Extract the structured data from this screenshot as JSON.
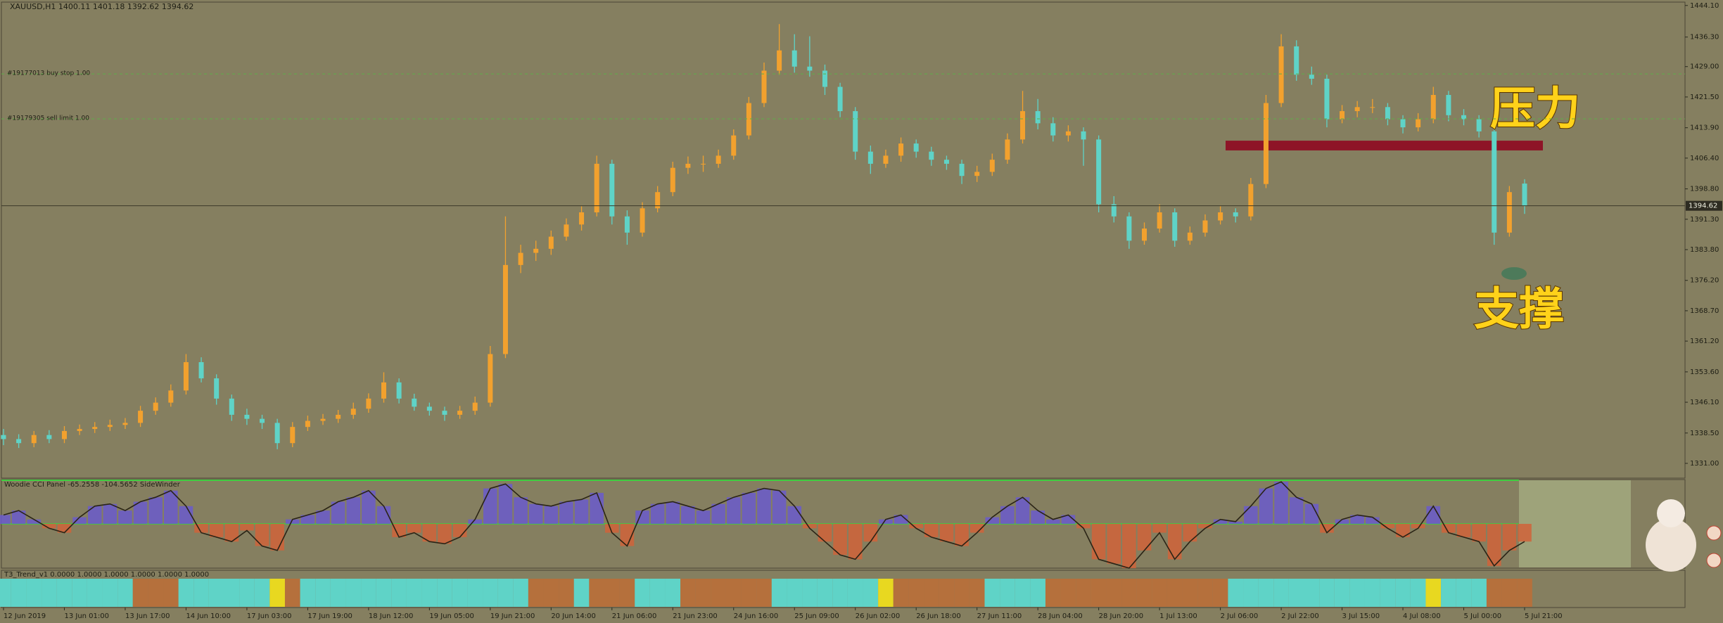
{
  "chart_data": [
    {
      "type": "candlestick",
      "title": "XAUUSD,H1  1400.11 1401.18 1392.62 1394.62",
      "categories": [
        "12 Jun 2019",
        null,
        null,
        null,
        "13 Jun 01:00",
        null,
        null,
        null,
        "13 Jun 17:00",
        null,
        null,
        null,
        "14 Jun 10:00",
        null,
        null,
        null,
        "17 Jun 03:00",
        null,
        null,
        null,
        "17 Jun 19:00",
        null,
        null,
        null,
        "18 Jun 12:00",
        null,
        null,
        null,
        "19 Jun 05:00",
        null,
        null,
        null,
        "19 Jun 21:00",
        null,
        null,
        null,
        "20 Jun 14:00",
        null,
        null,
        null,
        "21 Jun 06:00",
        null,
        null,
        null,
        "21 Jun 23:00",
        null,
        null,
        null,
        "24 Jun 16:00",
        null,
        null,
        null,
        "25 Jun 09:00",
        null,
        null,
        null,
        "26 Jun 02:00",
        null,
        null,
        null,
        "26 Jun 18:00",
        null,
        null,
        null,
        "27 Jun 11:00",
        null,
        null,
        null,
        "28 Jun 04:00",
        null,
        null,
        null,
        "28 Jun 20:00",
        null,
        null,
        null,
        "1 Jul 13:00",
        null,
        null,
        null,
        "2 Jul 06:00",
        null,
        null,
        null,
        "2 Jul 22:00",
        null,
        null,
        null,
        "3 Jul 15:00",
        null,
        null,
        null,
        "4 Jul 08:00",
        null,
        null,
        null,
        "5 Jul 00:00",
        null,
        null,
        null,
        "5 Jul 21:00"
      ],
      "candles": [
        [
          1338,
          1339.5,
          1335.5,
          1337
        ],
        [
          1337,
          1338.2,
          1334.8,
          1336
        ],
        [
          1336,
          1339,
          1335,
          1338
        ],
        [
          1338,
          1339.2,
          1336,
          1337
        ],
        [
          1337,
          1340.2,
          1336,
          1339
        ],
        [
          1339,
          1340.6,
          1338,
          1339.5
        ],
        [
          1339.5,
          1341.2,
          1338.5,
          1340
        ],
        [
          1340,
          1341.8,
          1339,
          1340.5
        ],
        [
          1340.5,
          1342.2,
          1339.5,
          1341
        ],
        [
          1341,
          1345.2,
          1340,
          1344
        ],
        [
          1344,
          1347.3,
          1343,
          1346
        ],
        [
          1346,
          1350.5,
          1345,
          1349
        ],
        [
          1349,
          1358,
          1348,
          1356
        ],
        [
          1356,
          1357.2,
          1351,
          1352
        ],
        [
          1352,
          1353,
          1345.5,
          1347
        ],
        [
          1347,
          1348,
          1341.5,
          1343
        ],
        [
          1343,
          1344.5,
          1340.5,
          1342
        ],
        [
          1342,
          1343,
          1339.5,
          1341
        ],
        [
          1341,
          1342,
          1334.5,
          1336
        ],
        [
          1336,
          1341.2,
          1335,
          1340
        ],
        [
          1340,
          1342.8,
          1339,
          1341.5
        ],
        [
          1341.5,
          1343.2,
          1340.5,
          1342
        ],
        [
          1342,
          1344.2,
          1341,
          1343
        ],
        [
          1343,
          1346,
          1342,
          1344.5
        ],
        [
          1344.5,
          1348.3,
          1343.5,
          1347
        ],
        [
          1347,
          1353.5,
          1346,
          1351
        ],
        [
          1351,
          1352,
          1345.8,
          1347
        ],
        [
          1347,
          1348.2,
          1344,
          1345
        ],
        [
          1345,
          1346,
          1342.8,
          1344
        ],
        [
          1344,
          1345,
          1341.5,
          1343
        ],
        [
          1343,
          1345.2,
          1342,
          1344
        ],
        [
          1344,
          1347.5,
          1343,
          1346
        ],
        [
          1346,
          1360,
          1345,
          1358
        ],
        [
          1358,
          1392,
          1357,
          1380
        ],
        [
          1380,
          1385,
          1378,
          1383
        ],
        [
          1383,
          1386,
          1381,
          1384
        ],
        [
          1384,
          1388.5,
          1382.5,
          1387
        ],
        [
          1387,
          1391.5,
          1386,
          1390
        ],
        [
          1390,
          1394.5,
          1388.5,
          1393
        ],
        [
          1393,
          1407,
          1392,
          1405
        ],
        [
          1405,
          1406,
          1390,
          1392
        ],
        [
          1392,
          1393.5,
          1385,
          1388
        ],
        [
          1388,
          1395.5,
          1387,
          1394
        ],
        [
          1394,
          1399.5,
          1393,
          1398
        ],
        [
          1398,
          1405.5,
          1397,
          1404
        ],
        [
          1404,
          1406.8,
          1402.5,
          1405
        ],
        [
          1405,
          1407,
          1403,
          1405
        ],
        [
          1405,
          1408.5,
          1404,
          1407
        ],
        [
          1407,
          1413.5,
          1406,
          1412
        ],
        [
          1412,
          1421.5,
          1411,
          1420
        ],
        [
          1420,
          1430,
          1419,
          1428
        ],
        [
          1428,
          1439.5,
          1427,
          1433
        ],
        [
          1433,
          1437,
          1427.5,
          1429
        ],
        [
          1429,
          1436.5,
          1426.5,
          1428
        ],
        [
          1428,
          1429.5,
          1422,
          1424
        ],
        [
          1424,
          1425,
          1416.5,
          1418
        ],
        [
          1418,
          1419,
          1406,
          1408
        ],
        [
          1408,
          1409.5,
          1402.5,
          1405
        ],
        [
          1405,
          1408.5,
          1404,
          1407
        ],
        [
          1407,
          1411.5,
          1405.5,
          1410
        ],
        [
          1410,
          1411,
          1406.5,
          1408
        ],
        [
          1408,
          1409.2,
          1404.5,
          1406
        ],
        [
          1406,
          1407,
          1403.5,
          1405
        ],
        [
          1405,
          1406,
          1400,
          1402
        ],
        [
          1402,
          1404.5,
          1400.5,
          1403
        ],
        [
          1403,
          1407.5,
          1402,
          1406
        ],
        [
          1406,
          1412.5,
          1405,
          1411
        ],
        [
          1411,
          1423,
          1410,
          1418
        ],
        [
          1418,
          1421,
          1413.5,
          1415
        ],
        [
          1415,
          1416.5,
          1410.5,
          1412
        ],
        [
          1412,
          1414.5,
          1410.5,
          1413
        ],
        [
          1413,
          1414,
          1404.5,
          1411
        ],
        [
          1411,
          1412,
          1393,
          1395
        ],
        [
          1395,
          1397,
          1390.5,
          1392
        ],
        [
          1392,
          1393,
          1384,
          1386
        ],
        [
          1386,
          1390.5,
          1385,
          1389
        ],
        [
          1389,
          1395,
          1388,
          1393
        ],
        [
          1393,
          1394,
          1384.5,
          1386
        ],
        [
          1386,
          1389.5,
          1385,
          1388
        ],
        [
          1388,
          1392.5,
          1387,
          1391
        ],
        [
          1391,
          1394.5,
          1390,
          1393
        ],
        [
          1393,
          1394,
          1390.5,
          1392
        ],
        [
          1392,
          1401.5,
          1391,
          1400
        ],
        [
          1400,
          1422,
          1399,
          1420
        ],
        [
          1420,
          1437,
          1419,
          1434
        ],
        [
          1434,
          1435.5,
          1425.5,
          1427
        ],
        [
          1427,
          1429,
          1424.5,
          1426
        ],
        [
          1426,
          1427,
          1414,
          1416
        ],
        [
          1416,
          1419.5,
          1415,
          1418
        ],
        [
          1418,
          1420.5,
          1416.5,
          1419
        ],
        [
          1419,
          1421,
          1417.5,
          1419
        ],
        [
          1419,
          1420,
          1414.5,
          1416
        ],
        [
          1416,
          1417,
          1412.5,
          1414
        ],
        [
          1414,
          1417.5,
          1413,
          1416
        ],
        [
          1416,
          1424,
          1415,
          1422
        ],
        [
          1422,
          1423,
          1415.5,
          1417
        ],
        [
          1417,
          1418.5,
          1414.5,
          1416
        ],
        [
          1416,
          1417,
          1411.5,
          1413
        ],
        [
          1413,
          1414,
          1385,
          1388
        ],
        [
          1388,
          1399.5,
          1387,
          1398
        ],
        [
          1400.11,
          1401.18,
          1392.62,
          1394.62
        ]
      ],
      "up_color": "#f2a12e",
      "down_color": "#5fd3c7",
      "ylim": [
        1327.35,
        1444.93
      ],
      "yticks": [
        {
          "value": 1331,
          "label": "1331.00"
        },
        {
          "value": 1338.5,
          "label": "1338.50"
        },
        {
          "value": 1346.1,
          "label": "1346.10"
        },
        {
          "value": 1353.6,
          "label": "1353.60"
        },
        {
          "value": 1361.2,
          "label": "1361.20"
        },
        {
          "value": 1368.7,
          "label": "1368.70"
        },
        {
          "value": 1376.2,
          "label": "1376.20"
        },
        {
          "value": 1383.8,
          "label": "1383.80"
        },
        {
          "value": 1391.3,
          "label": "1391.30"
        },
        {
          "value": 1398.8,
          "label": "1398.80"
        },
        {
          "value": 1406.4,
          "label": "1406.40"
        },
        {
          "value": 1413.9,
          "label": "1413.90"
        },
        {
          "value": 1421.5,
          "label": "1421.50"
        },
        {
          "value": 1429,
          "label": "1429.00"
        },
        {
          "value": 1436.3,
          "label": "1436.30"
        },
        {
          "value": 1444.1,
          "label": "1444.10"
        }
      ],
      "grid": false,
      "last_price": 1394.62,
      "orders": [
        {
          "label": "#19177013 buy stop 1.00",
          "price": 1427.2
        },
        {
          "label": "#19179305 sell limit 1.00",
          "price": 1416.1
        }
      ],
      "zone": {
        "ymin": 1408.3,
        "ymax": 1410.7,
        "color": "#8e1427"
      },
      "annotations": [
        "压力",
        "支撑"
      ]
    },
    {
      "type": "oscillator",
      "title": "Woodie CCI Panel -65.2558 -104.5652 SideWinder",
      "values": [
        40,
        60,
        20,
        -20,
        -40,
        30,
        80,
        90,
        60,
        100,
        120,
        150,
        80,
        -40,
        -60,
        -80,
        -30,
        -100,
        -120,
        20,
        40,
        60,
        100,
        120,
        150,
        80,
        -60,
        -40,
        -80,
        -90,
        -60,
        20,
        160,
        180,
        120,
        90,
        80,
        100,
        110,
        140,
        -40,
        -100,
        60,
        90,
        100,
        80,
        60,
        90,
        120,
        140,
        160,
        150,
        80,
        -20,
        -80,
        -140,
        -160,
        -80,
        20,
        40,
        -20,
        -60,
        -80,
        -100,
        -40,
        30,
        80,
        120,
        60,
        20,
        40,
        -20,
        -160,
        -180,
        -200,
        -120,
        -40,
        -160,
        -80,
        -20,
        20,
        10,
        80,
        160,
        190,
        120,
        90,
        -40,
        20,
        40,
        30,
        -20,
        -60,
        -20,
        80,
        -40,
        -60,
        -80,
        -190,
        -120,
        -80
      ],
      "ylim": [
        -200,
        200
      ],
      "up_color": "#6a5acd",
      "down_color": "#d0633a"
    },
    {
      "type": "band",
      "title": "T3_Trend_v1 0.0000 1.0000 1.0000 1.0000 1.0000 1.0000",
      "values": [
        1,
        1,
        1,
        1,
        1,
        1,
        1,
        1,
        1,
        -1,
        -1,
        -1,
        1,
        1,
        1,
        1,
        1,
        1,
        0,
        -1,
        1,
        1,
        1,
        1,
        1,
        1,
        1,
        1,
        1,
        1,
        1,
        1,
        1,
        1,
        1,
        -1,
        -1,
        -1,
        1,
        -1,
        -1,
        -1,
        1,
        1,
        1,
        -1,
        -1,
        -1,
        -1,
        -1,
        -1,
        1,
        1,
        1,
        1,
        1,
        1,
        1,
        0,
        -1,
        -1,
        -1,
        -1,
        -1,
        -1,
        1,
        1,
        1,
        1,
        -1,
        -1,
        -1,
        -1,
        -1,
        -1,
        -1,
        -1,
        -1,
        -1,
        -1,
        -1,
        1,
        1,
        1,
        1,
        1,
        1,
        1,
        1,
        1,
        1,
        1,
        1,
        1,
        0,
        1,
        1,
        1,
        -1,
        -1,
        -1
      ],
      "up_color": "#5fd3c7",
      "down_color": "#b5703c",
      "neutral_color": "#e8d820"
    }
  ]
}
